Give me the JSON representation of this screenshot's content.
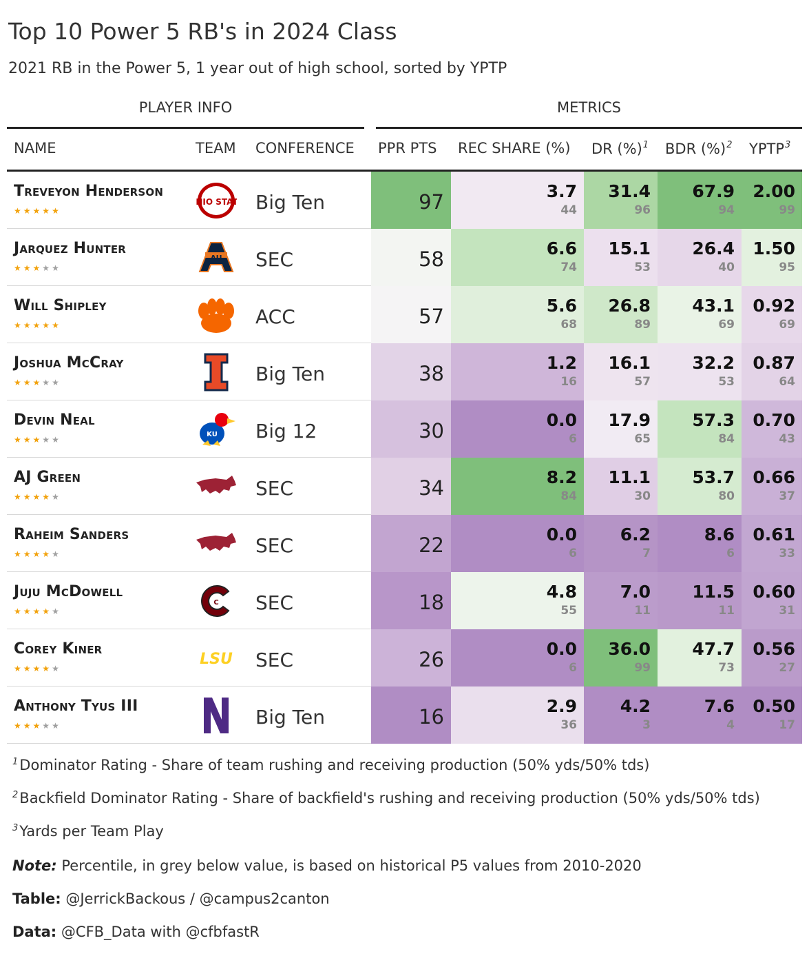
{
  "title": "Top 10 Power 5 RB's in 2024 Class",
  "subtitle": "2021 RB in the Power 5, 1 year out of high school, sorted by YPTP",
  "spanners": {
    "player_info": "PLAYER INFO",
    "metrics": "METRICS"
  },
  "columns": {
    "name": "NAME",
    "team": "TEAM",
    "conference": "CONFERENCE",
    "ppr": "PPR PTS",
    "rec_share": "REC SHARE (%)",
    "dr": "DR (%)",
    "dr_sup": "1",
    "bdr": "BDR (%)",
    "bdr_sup": "2",
    "yptp": "YPTP",
    "yptp_sup": "3"
  },
  "rows": [
    {
      "name": "Treveyon Henderson",
      "stars": 5,
      "team_logo": "ohio-state-logo",
      "conference": "Big Ten",
      "ppr": "97",
      "ppr_color": "#7fbf7b",
      "rec": "3.7",
      "rec_pct": "44",
      "rec_color": "#f1e9f2",
      "dr": "31.4",
      "dr_pct": "96",
      "dr_color": "#acd7a4",
      "bdr": "67.9",
      "bdr_pct": "94",
      "bdr_color": "#7fbf7b",
      "yptp": "2.00",
      "yptp_pct": "99",
      "yptp_color": "#7fbf7b"
    },
    {
      "name": "Jarquez Hunter",
      "stars": 3,
      "team_logo": "auburn-logo",
      "conference": "SEC",
      "ppr": "58",
      "ppr_color": "#f3f5f2",
      "rec": "6.6",
      "rec_pct": "74",
      "rec_color": "#c4e4be",
      "dr": "15.1",
      "dr_pct": "53",
      "dr_color": "#ece0ee",
      "bdr": "26.4",
      "bdr_pct": "40",
      "bdr_color": "#e6d7e9",
      "yptp": "1.50",
      "yptp_pct": "95",
      "yptp_color": "#e3f1df"
    },
    {
      "name": "Will Shipley",
      "stars": 5,
      "team_logo": "clemson-logo",
      "conference": "ACC",
      "ppr": "57",
      "ppr_color": "#f5f4f5",
      "rec": "5.6",
      "rec_pct": "68",
      "rec_color": "#e0efdc",
      "dr": "26.8",
      "dr_pct": "89",
      "dr_color": "#cfe8c9",
      "bdr": "43.1",
      "bdr_pct": "69",
      "bdr_color": "#e9f3e6",
      "yptp": "0.92",
      "yptp_pct": "69",
      "yptp_color": "#e7d8ea"
    },
    {
      "name": "Joshua McCray",
      "stars": 3,
      "team_logo": "illinois-logo",
      "conference": "Big Ten",
      "ppr": "38",
      "ppr_color": "#e2d3e7",
      "rec": "1.2",
      "rec_pct": "16",
      "rec_color": "#cfb6d9",
      "dr": "16.1",
      "dr_pct": "57",
      "dr_color": "#eee4ef",
      "bdr": "32.2",
      "bdr_pct": "53",
      "bdr_color": "#ede3ef",
      "yptp": "0.87",
      "yptp_pct": "64",
      "yptp_color": "#e3d3e7"
    },
    {
      "name": "Devin Neal",
      "stars": 3,
      "team_logo": "kansas-logo",
      "conference": "Big 12",
      "ppr": "30",
      "ppr_color": "#d6c1de",
      "rec": "0.0",
      "rec_pct": "6",
      "rec_color": "#b08dc4",
      "dr": "17.9",
      "dr_pct": "65",
      "dr_color": "#f1ebf3",
      "bdr": "57.3",
      "bdr_pct": "84",
      "bdr_color": "#c4e4be",
      "yptp": "0.70",
      "yptp_pct": "43",
      "yptp_color": "#cfb8da"
    },
    {
      "name": "AJ Green",
      "stars": 4,
      "team_logo": "arkansas-logo",
      "conference": "SEC",
      "ppr": "34",
      "ppr_color": "#e1d0e5",
      "rec": "8.2",
      "rec_pct": "84",
      "rec_color": "#7fbf7b",
      "dr": "11.1",
      "dr_pct": "30",
      "dr_color": "#e0cee5",
      "bdr": "53.7",
      "bdr_pct": "80",
      "bdr_color": "#d5ebd0",
      "yptp": "0.66",
      "yptp_pct": "37",
      "yptp_color": "#c9b0d6"
    },
    {
      "name": "Raheim Sanders",
      "stars": 4,
      "team_logo": "arkansas-logo",
      "conference": "SEC",
      "ppr": "22",
      "ppr_color": "#c2a5d0",
      "rec": "0.0",
      "rec_pct": "6",
      "rec_color": "#b08dc4",
      "dr": "6.2",
      "dr_pct": "7",
      "dr_color": "#b594c6",
      "bdr": "8.6",
      "bdr_pct": "6",
      "bdr_color": "#b08dc4",
      "yptp": "0.61",
      "yptp_pct": "33",
      "yptp_color": "#c2a7d1"
    },
    {
      "name": "Juju McDowell",
      "stars": 4,
      "team_logo": "south-carolina-logo",
      "conference": "SEC",
      "ppr": "18",
      "ppr_color": "#b896c9",
      "rec": "4.8",
      "rec_pct": "55",
      "rec_color": "#edf4eb",
      "dr": "7.0",
      "dr_pct": "11",
      "dr_color": "#bb9ccb",
      "bdr": "11.5",
      "bdr_pct": "11",
      "bdr_color": "#b999c9",
      "yptp": "0.60",
      "yptp_pct": "31",
      "yptp_color": "#c1a5d0"
    },
    {
      "name": "Corey Kiner",
      "stars": 4,
      "team_logo": "lsu-logo",
      "conference": "SEC",
      "ppr": "26",
      "ppr_color": "#ccb3d8",
      "rec": "0.0",
      "rec_pct": "6",
      "rec_color": "#b08dc4",
      "dr": "36.0",
      "dr_pct": "99",
      "dr_color": "#7fbf7b",
      "bdr": "47.7",
      "bdr_pct": "73",
      "bdr_color": "#e2f1de",
      "yptp": "0.56",
      "yptp_pct": "27",
      "yptp_color": "#ba9bca"
    },
    {
      "name": "Anthony Tyus III",
      "stars": 3,
      "team_logo": "northwestern-logo",
      "conference": "Big Ten",
      "ppr": "16",
      "ppr_color": "#b08dc4",
      "rec": "2.9",
      "rec_pct": "36",
      "rec_color": "#eadfed",
      "dr": "4.2",
      "dr_pct": "3",
      "dr_color": "#b08dc4",
      "bdr": "7.6",
      "bdr_pct": "4",
      "bdr_color": "#b08dc4",
      "yptp": "0.50",
      "yptp_pct": "17",
      "yptp_color": "#b08dc4"
    }
  ],
  "footnotes": {
    "f1_num": "1",
    "f1": "Dominator Rating - Share of team rushing and receiving production (50% yds/50% tds)",
    "f2_num": "2",
    "f2": "Backfield Dominator Rating - Share of backfield's rushing and receiving production (50% yds/50% tds)",
    "f3_num": "3",
    "f3": "Yards per Team Play",
    "note_label": "Note:",
    "note": "Percentile, in grey below value, is based on historical P5 values from 2010-2020",
    "table_label": "Table:",
    "table": "@JerrickBackous / @campus2canton",
    "data_label": "Data:",
    "data": "@CFB_Data with @cfbfastR"
  },
  "logos": {
    "ohio-state-logo": "OHIO STATE",
    "auburn-logo": "AU",
    "illinois-logo": "I",
    "kansas-logo": "KU",
    "lsu-logo": "LSU",
    "south-carolina-logo": "C",
    "northwestern-logo": "N"
  },
  "colors": {
    "green": "#7fbf7b",
    "purple": "#b08dc4",
    "star": "#f2a20c"
  }
}
